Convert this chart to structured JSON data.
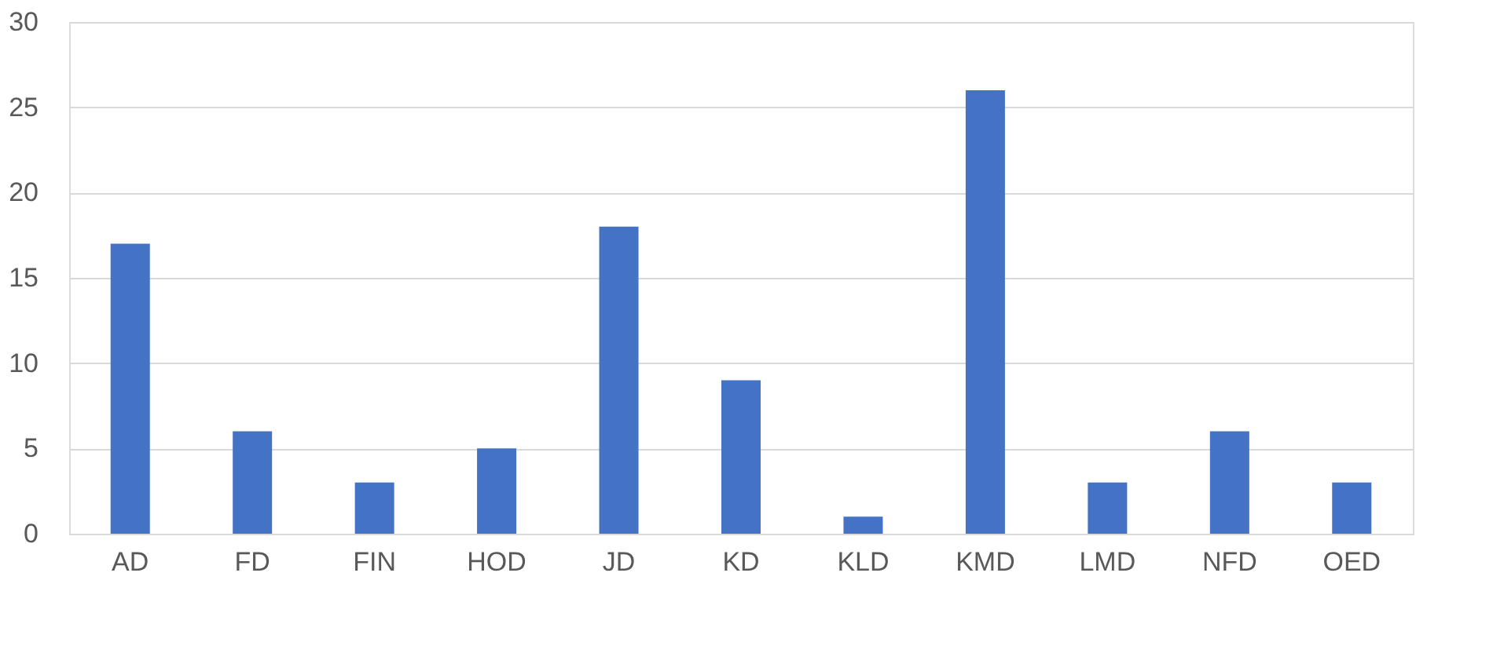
{
  "chart_data": {
    "type": "bar",
    "categories": [
      "AD",
      "FD",
      "FIN",
      "HOD",
      "JD",
      "KD",
      "KLD",
      "KMD",
      "LMD",
      "NFD",
      "OED"
    ],
    "values": [
      17,
      6,
      3,
      5,
      18,
      9,
      1,
      26,
      3,
      6,
      3
    ],
    "color": "#4472c4",
    "ylim": [
      0,
      30
    ],
    "yticks": [
      0,
      5,
      10,
      15,
      20,
      25,
      30
    ],
    "grid": "y"
  }
}
